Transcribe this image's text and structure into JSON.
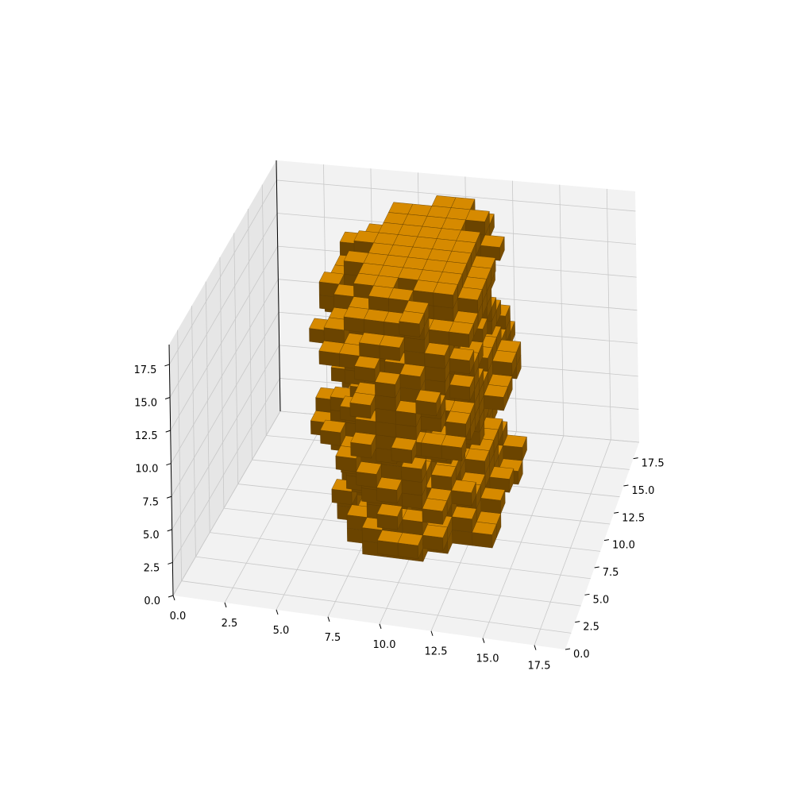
{
  "chart_data": {
    "type": "voxel",
    "title": "",
    "xlabel": "",
    "ylabel": "",
    "zlabel": "",
    "grid": true,
    "colors": {
      "face_top": "#d68a00",
      "face_side": "#7a4e00",
      "face_front": "#6b4400",
      "edge": "#5a3a00",
      "pane": "#f2f2f2",
      "pane_side": "#e6e6e6",
      "gridline": "#c8c8c8"
    },
    "axes": {
      "x": {
        "range": [
          0,
          19
        ],
        "ticks": [
          "0.0",
          "2.5",
          "5.0",
          "7.5",
          "10.0",
          "12.5",
          "15.0",
          "17.5"
        ]
      },
      "y": {
        "range": [
          0,
          19
        ],
        "ticks": [
          "0.0",
          "2.5",
          "5.0",
          "7.5",
          "10.0",
          "12.5",
          "15.0",
          "17.5"
        ]
      },
      "z": {
        "range": [
          0,
          19
        ],
        "ticks": [
          "0.0",
          "2.5",
          "5.0",
          "7.5",
          "10.0",
          "12.5",
          "15.0",
          "17.5"
        ]
      }
    },
    "shape": {
      "description_free": true,
      "x_extent": [
        6,
        13
      ],
      "y_extent": [
        2,
        15
      ],
      "z_extent": [
        1,
        19
      ]
    }
  }
}
